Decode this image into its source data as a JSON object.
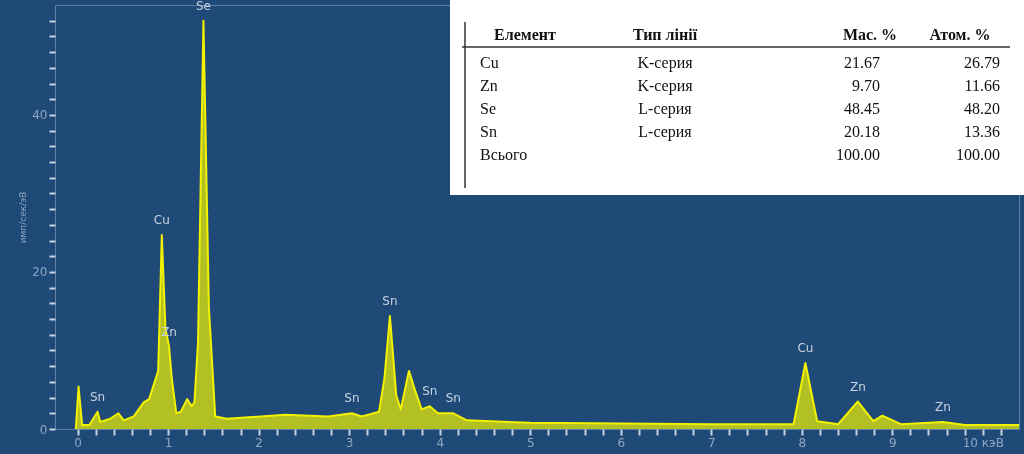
{
  "chart_data": [
    {
      "type": "area",
      "ylabel": "имп/сек/эВ",
      "x": [
        -0.02,
        0.01,
        0.05,
        0.13,
        0.22,
        0.25,
        0.36,
        0.45,
        0.51,
        0.62,
        0.73,
        0.79,
        0.89,
        0.93,
        0.97,
        1.01,
        1.04,
        1.09,
        1.14,
        1.21,
        1.26,
        1.29,
        1.33,
        1.39,
        1.45,
        1.52,
        1.65,
        2.29,
        2.77,
        3.03,
        3.14,
        3.33,
        3.39,
        3.45,
        3.52,
        3.57,
        3.66,
        3.72,
        3.8,
        3.89,
        3.98,
        4.15,
        4.3,
        5.0,
        6.0,
        7.0,
        7.91,
        8.04,
        8.17,
        8.4,
        8.62,
        8.79,
        8.89,
        9.1,
        9.56,
        9.8,
        10.4
      ],
      "values": [
        0,
        5.4,
        0.5,
        0.5,
        2.2,
        0.9,
        1.3,
        2.0,
        1.1,
        1.6,
        3.4,
        3.8,
        7.4,
        24.7,
        12.8,
        10.5,
        6.5,
        2.0,
        2.2,
        3.8,
        2.9,
        3.4,
        11,
        52,
        15.5,
        1.6,
        1.3,
        1.8,
        1.6,
        2.0,
        1.6,
        2.2,
        6.5,
        14.4,
        4.3,
        2.5,
        7.4,
        5.2,
        2.5,
        2.9,
        2.0,
        2.0,
        1.1,
        0.8,
        0.7,
        0.6,
        0.6,
        8.4,
        1.0,
        0.6,
        3.5,
        1.0,
        1.7,
        0.6,
        0.9,
        0.5,
        0.5
      ],
      "color": "#f2f200",
      "xlim": [
        -0.25,
        10.4
      ],
      "ylim": [
        0,
        54
      ],
      "xticks": [
        0,
        {
          "value": 0.2,
          "label": null
        },
        {
          "value": 0.4,
          "label": null
        },
        {
          "value": 0.6,
          "label": null
        },
        {
          "value": 0.8,
          "label": null
        },
        1,
        {
          "value": 1.2,
          "label": null
        },
        {
          "value": 1.4,
          "label": null
        },
        {
          "value": 1.6,
          "label": null
        },
        {
          "value": 1.8,
          "label": null
        },
        2,
        {
          "value": 2.2,
          "label": null
        },
        {
          "value": 2.4,
          "label": null
        },
        {
          "value": 2.6,
          "label": null
        },
        {
          "value": 2.8,
          "label": null
        },
        3,
        {
          "value": 3.2,
          "label": null
        },
        {
          "value": 3.4,
          "label": null
        },
        {
          "value": 3.6,
          "label": null
        },
        {
          "value": 3.8,
          "label": null
        },
        4,
        {
          "value": 4.2,
          "label": null
        },
        {
          "value": 4.4,
          "label": null
        },
        {
          "value": 4.6,
          "label": null
        },
        {
          "value": 4.8,
          "label": null
        },
        5,
        {
          "value": 5.2,
          "label": null
        },
        {
          "value": 5.4,
          "label": null
        },
        {
          "value": 5.6,
          "label": null
        },
        {
          "value": 5.8,
          "label": null
        },
        6,
        {
          "value": 6.2,
          "label": null
        },
        {
          "value": 6.4,
          "label": null
        },
        {
          "value": 6.6,
          "label": null
        },
        {
          "value": 6.8,
          "label": null
        },
        7,
        {
          "value": 7.2,
          "label": null
        },
        {
          "value": 7.4,
          "label": null
        },
        {
          "value": 7.6,
          "label": null
        },
        {
          "value": 7.8,
          "label": null
        },
        8,
        {
          "value": 8.2,
          "label": null
        },
        {
          "value": 8.4,
          "label": null
        },
        {
          "value": 8.6,
          "label": null
        },
        {
          "value": 8.8,
          "label": null
        },
        9,
        {
          "value": 9.2,
          "label": null
        },
        {
          "value": 9.4,
          "label": null
        },
        {
          "value": 9.6,
          "label": null
        },
        {
          "value": 9.8,
          "label": null
        },
        {
          "value": 10,
          "label": "10 кэВ"
        },
        {
          "value": 10.2,
          "label": null
        }
      ],
      "yticks": [
        0,
        {
          "value": 2,
          "label": null
        },
        {
          "value": 4,
          "label": null
        },
        {
          "value": 6,
          "label": null
        },
        {
          "value": 8,
          "label": null
        },
        {
          "value": 10,
          "label": null
        },
        {
          "value": 12,
          "label": null
        },
        {
          "value": 14,
          "label": null
        },
        {
          "value": 16,
          "label": null
        },
        {
          "value": 18,
          "label": null
        },
        20,
        {
          "value": 22,
          "label": null
        },
        {
          "value": 24,
          "label": null
        },
        {
          "value": 26,
          "label": null
        },
        {
          "value": 28,
          "label": null
        },
        {
          "value": 30,
          "label": null
        },
        {
          "value": 32,
          "label": null
        },
        {
          "value": 34,
          "label": null
        },
        {
          "value": 36,
          "label": null
        },
        {
          "value": 38,
          "label": null
        },
        40,
        {
          "value": 42,
          "label": null
        },
        {
          "value": 44,
          "label": null
        },
        {
          "value": 46,
          "label": null
        },
        {
          "value": 48,
          "label": null
        },
        {
          "value": 50,
          "label": null
        },
        {
          "value": 52,
          "label": null
        }
      ],
      "grid": false,
      "annotations": [
        {
          "text": "Sn",
          "x": 0.22,
          "y": 2.2
        },
        {
          "text": "Cu",
          "x": 0.93,
          "y": 24.7
        },
        {
          "text": "Zn",
          "x": 1.01,
          "y": 10.5
        },
        {
          "text": "Se",
          "x": 1.39,
          "y": 52
        },
        {
          "text": "Sn",
          "x": 3.03,
          "y": 2.0
        },
        {
          "text": "Sn",
          "x": 3.45,
          "y": 14.4
        },
        {
          "text": "Sn",
          "x": 3.89,
          "y": 2.9
        },
        {
          "text": "Sn",
          "x": 4.15,
          "y": 2.0
        },
        {
          "text": "Cu",
          "x": 8.04,
          "y": 8.4
        },
        {
          "text": "Zn",
          "x": 8.62,
          "y": 3.5
        },
        {
          "text": "Zn",
          "x": 9.56,
          "y": 0.9
        }
      ]
    },
    {
      "type": "other",
      "categories": [
        "Елемент",
        "Тип лінії",
        "Мас. %",
        "Атом. %"
      ],
      "cell_labels": [
        [
          "Cu",
          "K-серия",
          "21.67",
          "26.79"
        ],
        [
          "Zn",
          "K-серия",
          "9.70",
          "11.66"
        ],
        [
          "Se",
          "L-серия",
          "48.45",
          "48.20"
        ],
        [
          "Sn",
          "L-серия",
          "20.18",
          "13.36"
        ],
        [
          "Всього",
          null,
          "100.00",
          "100.00"
        ]
      ]
    }
  ]
}
